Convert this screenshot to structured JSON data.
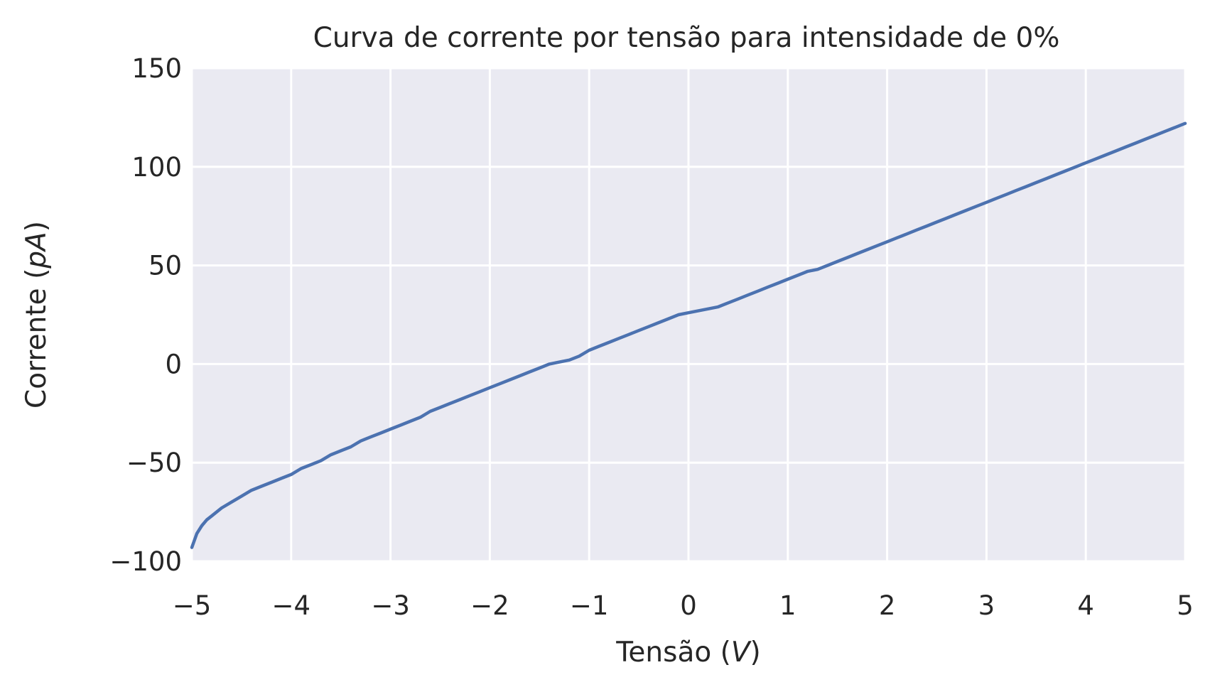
{
  "chart_data": {
    "type": "line",
    "title": "Curva de corrente por tensão para intensidade de 0%",
    "xlabel": "Tensão (V)",
    "ylabel": "Corrente (pA)",
    "xlabel_parts": {
      "pre": "Tensão (",
      "unit": "V",
      "post": ")"
    },
    "ylabel_parts": {
      "pre": "Corrente (",
      "unit": "pA",
      "post": ")"
    },
    "xlim": [
      -5,
      5
    ],
    "ylim": [
      -100,
      150
    ],
    "xticks": [
      -5,
      -4,
      -3,
      -2,
      -1,
      0,
      1,
      2,
      3,
      4,
      5
    ],
    "xtick_labels": [
      "−5",
      "−4",
      "−3",
      "−2",
      "−1",
      "0",
      "1",
      "2",
      "3",
      "4",
      "5"
    ],
    "yticks": [
      -100,
      -50,
      0,
      50,
      100,
      150
    ],
    "ytick_labels": [
      "−100",
      "−50",
      "0",
      "50",
      "100",
      "150"
    ],
    "grid": true,
    "background": "#eaeaf2",
    "series": [
      {
        "color": "#4c72b0",
        "x": [
          -5.0,
          -4.95,
          -4.9,
          -4.85,
          -4.8,
          -4.7,
          -4.6,
          -4.5,
          -4.4,
          -4.3,
          -4.2,
          -4.1,
          -4.0,
          -3.9,
          -3.8,
          -3.7,
          -3.6,
          -3.5,
          -3.4,
          -3.3,
          -3.2,
          -3.1,
          -3.0,
          -2.9,
          -2.8,
          -2.7,
          -2.6,
          -2.5,
          -2.4,
          -2.3,
          -2.2,
          -2.1,
          -2.0,
          -1.9,
          -1.8,
          -1.7,
          -1.6,
          -1.5,
          -1.4,
          -1.3,
          -1.2,
          -1.1,
          -1.0,
          -0.9,
          -0.8,
          -0.7,
          -0.6,
          -0.5,
          -0.4,
          -0.3,
          -0.2,
          -0.1,
          0.0,
          0.1,
          0.2,
          0.3,
          0.4,
          0.5,
          0.6,
          0.7,
          0.8,
          0.9,
          1.0,
          1.1,
          1.2,
          1.3,
          1.4,
          1.5,
          1.6,
          1.7,
          1.8,
          1.9,
          2.0,
          2.1,
          2.2,
          2.3,
          2.4,
          2.5,
          2.6,
          2.7,
          2.8,
          2.9,
          3.0,
          3.1,
          3.2,
          3.3,
          3.4,
          3.5,
          3.6,
          3.7,
          3.8,
          3.9,
          4.0,
          4.1,
          4.2,
          4.3,
          4.4,
          4.5,
          4.6,
          4.7,
          4.8,
          4.9,
          5.0
        ],
        "y": [
          -93,
          -86,
          -82,
          -79,
          -77,
          -73,
          -70,
          -67,
          -64,
          -62,
          -60,
          -58,
          -56,
          -53,
          -51,
          -49,
          -46,
          -44,
          -42,
          -39,
          -37,
          -35,
          -33,
          -31,
          -29,
          -27,
          -24,
          -22,
          -20,
          -18,
          -16,
          -14,
          -12,
          -10,
          -8,
          -6,
          -4,
          -2,
          0,
          1,
          2,
          4,
          7,
          9,
          11,
          13,
          15,
          17,
          19,
          21,
          23,
          25,
          26,
          27,
          28,
          29,
          31,
          33,
          35,
          37,
          39,
          41,
          43,
          45,
          47,
          48,
          50,
          52,
          54,
          56,
          58,
          60,
          62,
          64,
          66,
          68,
          70,
          72,
          74,
          76,
          78,
          80,
          82,
          84,
          86,
          88,
          90,
          92,
          94,
          96,
          98,
          100,
          102,
          104,
          106,
          108,
          110,
          112,
          114,
          116,
          118,
          120,
          122
        ]
      }
    ]
  }
}
